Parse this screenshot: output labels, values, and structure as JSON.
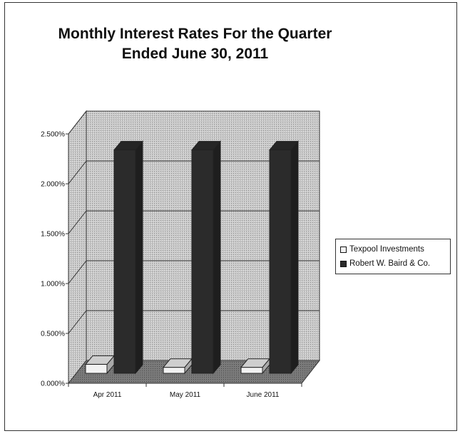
{
  "chart_data": {
    "type": "bar",
    "title": "Monthly Interest Rates For the Quarter\nEnded June 30, 2011",
    "categories": [
      "Apr 2011",
      "May 2011",
      "June 2011"
    ],
    "ylim": [
      0,
      0.025
    ],
    "yticks": [
      "0.000%",
      "0.500%",
      "1.000%",
      "1.500%",
      "2.000%",
      "2.500%"
    ],
    "grid": true,
    "three_d": true,
    "legend_position": "right",
    "series": [
      {
        "name": "Texpool Investments",
        "values": [
          0.0009,
          0.0006,
          0.0006
        ],
        "color": "#f2f2f2"
      },
      {
        "name": "Robert W. Baird & Co.",
        "values": [
          0.0224,
          0.0224,
          0.0224
        ],
        "color": "#2b2b2b"
      }
    ]
  }
}
